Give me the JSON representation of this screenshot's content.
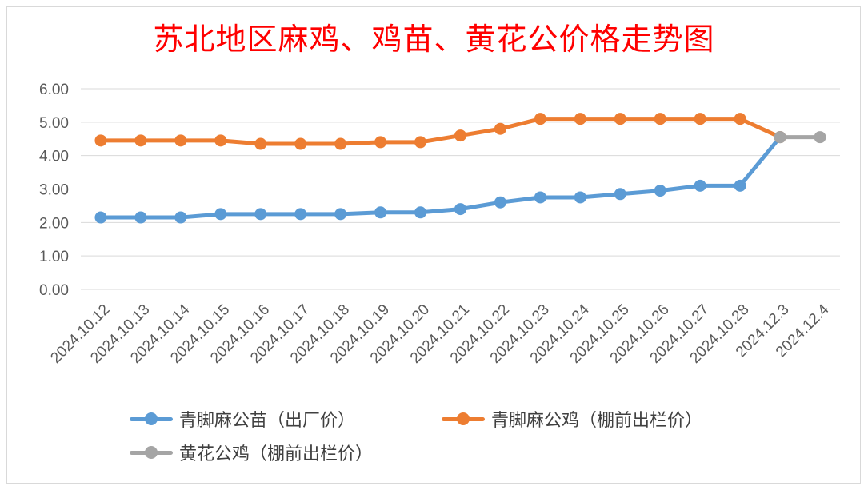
{
  "chart_data": {
    "type": "line",
    "title": "苏北地区麻鸡、鸡苗、黄花公价格走势图",
    "categories": [
      "2024.10.12",
      "2024.10.13",
      "2024.10.14",
      "2024.10.15",
      "2024.10.16",
      "2024.10.17",
      "2024.10.18",
      "2024.10.19",
      "2024.10.20",
      "2024.10.21",
      "2024.10.22",
      "2024.10.23",
      "2024.10.24",
      "2024.10.25",
      "2024.10.26",
      "2024.10.27",
      "2024.10.28",
      "2024.12.3",
      "2024.12.4"
    ],
    "series": [
      {
        "name": "青脚麻公苗（出厂价）",
        "color": "#5b9bd5",
        "values": [
          2.15,
          2.15,
          2.15,
          2.25,
          2.25,
          2.25,
          2.25,
          2.3,
          2.3,
          2.4,
          2.6,
          2.75,
          2.75,
          2.85,
          2.95,
          3.1,
          3.1,
          4.55,
          null
        ]
      },
      {
        "name": "青脚麻公鸡（棚前出栏价）",
        "color": "#ed7d31",
        "values": [
          4.45,
          4.45,
          4.45,
          4.45,
          4.35,
          4.35,
          4.35,
          4.4,
          4.4,
          4.6,
          4.8,
          5.1,
          5.1,
          5.1,
          5.1,
          5.1,
          5.1,
          4.55,
          null
        ]
      },
      {
        "name": "黄花公鸡（棚前出栏价）",
        "color": "#a5a5a5",
        "values": [
          null,
          null,
          null,
          null,
          null,
          null,
          null,
          null,
          null,
          null,
          null,
          null,
          null,
          null,
          null,
          null,
          null,
          4.55,
          4.55
        ]
      }
    ],
    "y_ticks": [
      "0.00",
      "1.00",
      "2.00",
      "3.00",
      "4.00",
      "5.00",
      "6.00"
    ],
    "ylim": [
      0,
      6
    ],
    "grid": true,
    "legend_position": "bottom"
  }
}
